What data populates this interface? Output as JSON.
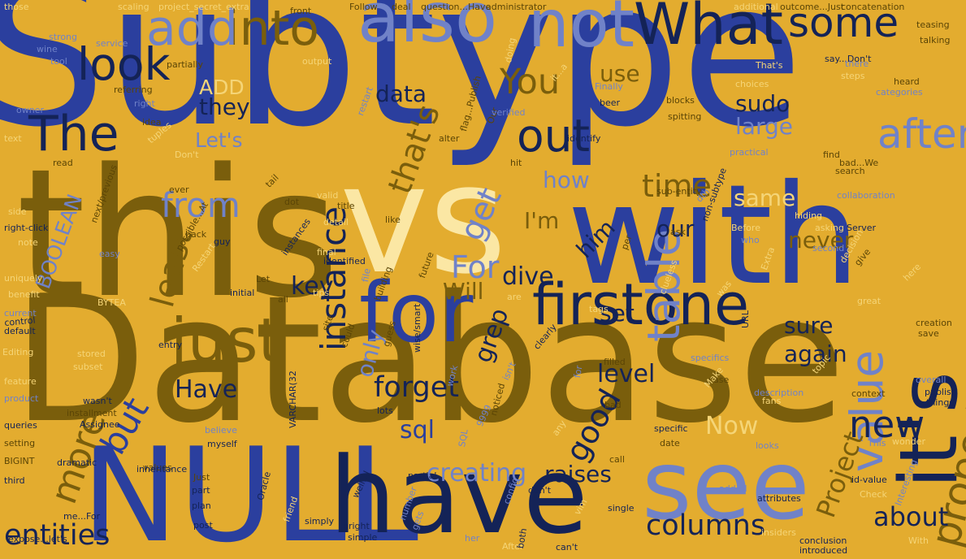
{
  "palette": {
    "background": "#e3ac2f",
    "royal_blue": "#2b3f9e",
    "navy": "#142357",
    "dark_olive": "#7a5e0c",
    "periwinkle": "#7082c8",
    "cream": "#fbe7a4",
    "pale_yellow": "#f5d577",
    "olive_brown": "#5b4506"
  },
  "words": [
    {
      "text": "Subtype",
      "color": "royal_blue"
    },
    {
      "text": "Database",
      "color": "dark_olive"
    },
    {
      "text": "this",
      "color": "dark_olive"
    },
    {
      "text": "vs",
      "color": "cream"
    },
    {
      "text": "with",
      "color": "royal_blue"
    },
    {
      "text": "NULL",
      "color": "royal_blue"
    },
    {
      "text": "have",
      "color": "navy"
    },
    {
      "text": "see",
      "color": "periwinkle"
    },
    {
      "text": "it's",
      "color": "navy"
    },
    {
      "text": "for",
      "color": "royal_blue"
    },
    {
      "text": "firstone",
      "color": "navy"
    },
    {
      "text": "just",
      "color": "dark_olive"
    },
    {
      "text": "also",
      "color": "periwinkle"
    },
    {
      "text": "not",
      "color": "periwinkle"
    },
    {
      "text": "What",
      "color": "navy"
    },
    {
      "text": "into",
      "color": "dark_olive"
    },
    {
      "text": "add",
      "color": "periwinkle"
    },
    {
      "text": "some",
      "color": "navy"
    },
    {
      "text": "look",
      "color": "navy"
    },
    {
      "text": "The",
      "color": "navy"
    },
    {
      "text": "out",
      "color": "navy"
    },
    {
      "text": "after",
      "color": "periwinkle"
    },
    {
      "text": "value",
      "color": "periwinkle"
    },
    {
      "text": "table",
      "color": "periwinkle"
    },
    {
      "text": "instance",
      "color": "navy"
    },
    {
      "text": "from",
      "color": "periwinkle"
    },
    {
      "text": "new",
      "color": "navy"
    },
    {
      "text": "property",
      "color": "dark_olive"
    },
    {
      "text": "columns",
      "color": "navy"
    },
    {
      "text": "more",
      "color": "dark_olive"
    },
    {
      "text": "entities",
      "color": "navy"
    },
    {
      "text": "but",
      "color": "royal_blue"
    },
    {
      "text": "get",
      "color": "periwinkle"
    },
    {
      "text": "You",
      "color": "dark_olive"
    },
    {
      "text": "time",
      "color": "dark_olive"
    },
    {
      "text": "that's",
      "color": "dark_olive"
    },
    {
      "text": "For",
      "color": "periwinkle"
    },
    {
      "text": "least",
      "color": "dark_olive"
    },
    {
      "text": "key",
      "color": "navy"
    },
    {
      "text": "forget",
      "color": "navy"
    },
    {
      "text": "good",
      "color": "navy"
    },
    {
      "text": "sql",
      "color": "royal_blue"
    },
    {
      "text": "Now",
      "color": "pale_yellow"
    },
    {
      "text": "creating",
      "color": "periwinkle"
    },
    {
      "text": "raises",
      "color": "navy"
    },
    {
      "text": "about",
      "color": "navy"
    },
    {
      "text": "Project",
      "color": "dark_olive"
    },
    {
      "text": "Have",
      "color": "navy"
    },
    {
      "text": "dive",
      "color": "navy"
    },
    {
      "text": "level",
      "color": "navy"
    },
    {
      "text": "grep",
      "color": "navy"
    },
    {
      "text": "same",
      "color": "pale_yellow"
    },
    {
      "text": "never",
      "color": "dark_olive"
    },
    {
      "text": "again",
      "color": "navy"
    },
    {
      "text": "sure",
      "color": "navy"
    },
    {
      "text": "set",
      "color": "navy"
    },
    {
      "text": "him",
      "color": "navy"
    },
    {
      "text": "our",
      "color": "navy"
    },
    {
      "text": "I'm",
      "color": "dark_olive"
    },
    {
      "text": "how",
      "color": "periwinkle"
    },
    {
      "text": "large",
      "color": "periwinkle"
    },
    {
      "text": "sudo",
      "color": "navy"
    },
    {
      "text": "use",
      "color": "dark_olive"
    },
    {
      "text": "data",
      "color": "navy"
    },
    {
      "text": "they",
      "color": "navy"
    },
    {
      "text": "ADD",
      "color": "pale_yellow"
    },
    {
      "text": "Let's",
      "color": "periwinkle"
    },
    {
      "text": "Will",
      "color": "dark_olive"
    },
    {
      "text": "only",
      "color": "periwinkle"
    },
    {
      "text": "BOOLEAN",
      "color": "periwinkle"
    },
    {
      "text": "those",
      "color": "pale_yellow"
    },
    {
      "text": "scaling",
      "color": "pale_yellow"
    },
    {
      "text": "project_secret_extra",
      "color": "pale_yellow"
    },
    {
      "text": "front",
      "color": "olive_brown"
    },
    {
      "text": "Follow",
      "color": "olive_brown"
    },
    {
      "text": "deal",
      "color": "olive_brown"
    },
    {
      "text": "question...Have",
      "color": "olive_brown"
    },
    {
      "text": "administrator",
      "color": "olive_brown"
    },
    {
      "text": "additional",
      "color": "pale_yellow"
    },
    {
      "text": "outcome...Just",
      "color": "olive_brown"
    },
    {
      "text": "concatenation",
      "color": "olive_brown"
    },
    {
      "text": "strong",
      "color": "periwinkle"
    },
    {
      "text": "service",
      "color": "periwinkle"
    },
    {
      "text": "wine",
      "color": "periwinkle"
    },
    {
      "text": "tool",
      "color": "periwinkle"
    },
    {
      "text": "partially",
      "color": "olive_brown"
    },
    {
      "text": "output",
      "color": "pale_yellow"
    },
    {
      "text": "doing",
      "color": "pale_yellow"
    },
    {
      "text": "teasing",
      "color": "olive_brown"
    },
    {
      "text": "talking",
      "color": "olive_brown"
    },
    {
      "text": "say...Don't",
      "color": "navy"
    },
    {
      "text": "there",
      "color": "periwinkle"
    },
    {
      "text": "steps",
      "color": "pale_yellow"
    },
    {
      "text": "heard",
      "color": "olive_brown"
    },
    {
      "text": "categories",
      "color": "periwinkle"
    },
    {
      "text": "referring",
      "color": "olive_brown"
    },
    {
      "text": "right",
      "color": "periwinkle"
    },
    {
      "text": "owner",
      "color": "periwinkle"
    },
    {
      "text": "idea",
      "color": "olive_brown"
    },
    {
      "text": "flag...Publish",
      "color": "olive_brown"
    },
    {
      "text": "it...a",
      "color": "pale_yellow"
    },
    {
      "text": "Finally",
      "color": "periwinkle"
    },
    {
      "text": "beer",
      "color": "navy"
    },
    {
      "text": "blocks",
      "color": "olive_brown"
    },
    {
      "text": "spitting",
      "color": "olive_brown"
    },
    {
      "text": "That's",
      "color": "pale_yellow"
    },
    {
      "text": "choices",
      "color": "pale_yellow"
    },
    {
      "text": "text",
      "color": "pale_yellow"
    },
    {
      "text": "tuples",
      "color": "pale_yellow"
    },
    {
      "text": "Don't",
      "color": "pale_yellow"
    },
    {
      "text": "read",
      "color": "olive_brown"
    },
    {
      "text": "Our",
      "color": "olive_brown"
    },
    {
      "text": "verified",
      "color": "periwinkle"
    },
    {
      "text": "alter",
      "color": "olive_brown"
    },
    {
      "text": "restart",
      "color": "periwinkle"
    },
    {
      "text": "hit",
      "color": "olive_brown"
    },
    {
      "text": "identify",
      "color": "navy"
    },
    {
      "text": "practical",
      "color": "periwinkle"
    },
    {
      "text": "bad...We",
      "color": "olive_brown"
    },
    {
      "text": "find",
      "color": "olive_brown"
    },
    {
      "text": "search",
      "color": "olive_brown"
    },
    {
      "text": "sub-entity",
      "color": "olive_brown"
    },
    {
      "text": "non-subtype",
      "color": "navy"
    },
    {
      "text": "dth",
      "color": "periwinkle"
    },
    {
      "text": "ever",
      "color": "olive_brown"
    },
    {
      "text": "side",
      "color": "pale_yellow"
    },
    {
      "text": "next/previous",
      "color": "olive_brown"
    },
    {
      "text": "tail",
      "color": "olive_brown"
    },
    {
      "text": "dot",
      "color": "olive_brown"
    },
    {
      "text": "valid",
      "color": "pale_yellow"
    },
    {
      "text": "title",
      "color": "olive_brown"
    },
    {
      "text": "detail",
      "color": "pale_yellow"
    },
    {
      "text": "like",
      "color": "olive_brown"
    },
    {
      "text": "hiding",
      "color": "pale_yellow"
    },
    {
      "text": "collaboration",
      "color": "periwinkle"
    },
    {
      "text": "asking",
      "color": "pale_yellow"
    },
    {
      "text": "Server",
      "color": "navy"
    },
    {
      "text": "right-click",
      "color": "navy"
    },
    {
      "text": "note",
      "color": "pale_yellow"
    },
    {
      "text": "easy",
      "color": "periwinkle"
    },
    {
      "text": "back",
      "color": "olive_brown"
    },
    {
      "text": "guy",
      "color": "navy"
    },
    {
      "text": "instances",
      "color": "navy"
    },
    {
      "text": "final",
      "color": "pale_yellow"
    },
    {
      "text": "identified",
      "color": "navy"
    },
    {
      "text": "file",
      "color": "periwinkle"
    },
    {
      "text": "future",
      "color": "olive_brown"
    },
    {
      "text": "per",
      "color": "olive_brown"
    },
    {
      "text": "ask",
      "color": "olive_brown"
    },
    {
      "text": "Before",
      "color": "pale_yellow"
    },
    {
      "text": "who",
      "color": "periwinkle"
    },
    {
      "text": "decision",
      "color": "pale_yellow"
    },
    {
      "text": "second",
      "color": "periwinkle"
    },
    {
      "text": "give",
      "color": "olive_brown"
    },
    {
      "text": "uniquely",
      "color": "pale_yellow"
    },
    {
      "text": "possible...At",
      "color": "olive_brown"
    },
    {
      "text": "Restart",
      "color": "pale_yellow"
    },
    {
      "text": "Let",
      "color": "olive_brown"
    },
    {
      "text": "initial",
      "color": "navy"
    },
    {
      "text": "tips",
      "color": "pale_yellow"
    },
    {
      "text": "all",
      "color": "olive_brown"
    },
    {
      "text": "are",
      "color": "pale_yellow"
    },
    {
      "text": "building",
      "color": "olive_brown"
    },
    {
      "text": "tags",
      "color": "pale_yellow"
    },
    {
      "text": "clueless",
      "color": "pale_yellow"
    },
    {
      "text": "was",
      "color": "pale_yellow"
    },
    {
      "text": "URL",
      "color": "navy"
    },
    {
      "text": "Extra",
      "color": "pale_yellow"
    },
    {
      "text": "here",
      "color": "pale_yellow"
    },
    {
      "text": "great",
      "color": "pale_yellow"
    },
    {
      "text": "benefit",
      "color": "pale_yellow"
    },
    {
      "text": "BYTEA",
      "color": "pale_yellow"
    },
    {
      "text": "current",
      "color": "periwinkle"
    },
    {
      "text": "control",
      "color": "navy"
    },
    {
      "text": "default",
      "color": "navy"
    },
    {
      "text": "Editing",
      "color": "pale_yellow"
    },
    {
      "text": "entry",
      "color": "navy"
    },
    {
      "text": "site",
      "color": "olive_brown"
    },
    {
      "text": "could",
      "color": "olive_brown"
    },
    {
      "text": "clearly",
      "color": "navy"
    },
    {
      "text": "for",
      "color": "periwinkle"
    },
    {
      "text": "creation",
      "color": "olive_brown"
    },
    {
      "text": "save",
      "color": "olive_brown"
    },
    {
      "text": "stored",
      "color": "pale_yellow"
    },
    {
      "text": "subset",
      "color": "pale_yellow"
    },
    {
      "text": "guess",
      "color": "olive_brown"
    },
    {
      "text": "wise/smart",
      "color": "navy"
    },
    {
      "text": "filled",
      "color": "olive_brown"
    },
    {
      "text": "specifics",
      "color": "periwinkle"
    },
    {
      "text": "topic",
      "color": "pale_yellow"
    },
    {
      "text": "overall",
      "color": "periwinkle"
    },
    {
      "text": "feature",
      "color": "pale_yellow"
    },
    {
      "text": "product",
      "color": "periwinkle"
    },
    {
      "text": "wasn't",
      "color": "navy"
    },
    {
      "text": "installment",
      "color": "olive_brown"
    },
    {
      "text": "Assignee",
      "color": "navy"
    },
    {
      "text": "VARCHAR(32",
      "color": "navy"
    },
    {
      "text": "lots",
      "color": "navy"
    },
    {
      "text": "work",
      "color": "periwinkle"
    },
    {
      "text": "isn't",
      "color": "periwinkle"
    },
    {
      "text": "case",
      "color": "olive_brown"
    },
    {
      "text": "Make",
      "color": "pale_yellow"
    },
    {
      "text": "bad",
      "color": "olive_brown"
    },
    {
      "text": "description",
      "color": "periwinkle"
    },
    {
      "text": "fans",
      "color": "pale_yellow"
    },
    {
      "text": "context",
      "color": "olive_brown"
    },
    {
      "text": "publish",
      "color": "navy"
    },
    {
      "text": "things",
      "color": "navy"
    },
    {
      "text": "queries",
      "color": "navy"
    },
    {
      "text": "setting",
      "color": "olive_brown"
    },
    {
      "text": "believe",
      "color": "periwinkle"
    },
    {
      "text": "myself",
      "color": "navy"
    },
    {
      "text": "SQL",
      "color": "periwinkle"
    },
    {
      "text": "9999",
      "color": "periwinkle"
    },
    {
      "text": "noticed",
      "color": "olive_brown"
    },
    {
      "text": "any",
      "color": "pale_yellow"
    },
    {
      "text": "date",
      "color": "olive_brown"
    },
    {
      "text": "specific",
      "color": "navy"
    },
    {
      "text": "looks",
      "color": "periwinkle"
    },
    {
      "text": "This",
      "color": "periwinkle"
    },
    {
      "text": "wonder",
      "color": "pale_yellow"
    },
    {
      "text": "BIGINT",
      "color": "olive_brown"
    },
    {
      "text": "dramatic",
      "color": "navy"
    },
    {
      "text": "third",
      "color": "navy"
    },
    {
      "text": "values",
      "color": "olive_brown"
    },
    {
      "text": "inheritance",
      "color": "navy"
    },
    {
      "text": "call",
      "color": "olive_brown"
    },
    {
      "text": "Just",
      "color": "olive_brown"
    },
    {
      "text": "part",
      "color": "navy"
    },
    {
      "text": "plan",
      "color": "navy"
    },
    {
      "text": "post",
      "color": "navy"
    },
    {
      "text": "me...For",
      "color": "navy"
    },
    {
      "text": "expose...let's",
      "color": "navy"
    },
    {
      "text": "Oracle",
      "color": "navy"
    },
    {
      "text": "simply",
      "color": "navy"
    },
    {
      "text": "friend",
      "color": "pale_yellow"
    },
    {
      "text": "well...I",
      "color": "navy"
    },
    {
      "text": "bright",
      "color": "navy"
    },
    {
      "text": "simple",
      "color": "navy"
    },
    {
      "text": "partial",
      "color": "navy"
    },
    {
      "text": "number",
      "color": "periwinkle"
    },
    {
      "text": "gets",
      "color": "periwinkle"
    },
    {
      "text": "her",
      "color": "periwinkle"
    },
    {
      "text": "config",
      "color": "periwinkle"
    },
    {
      "text": "don't",
      "color": "navy"
    },
    {
      "text": "After",
      "color": "pale_yellow"
    },
    {
      "text": "both",
      "color": "navy"
    },
    {
      "text": "can't",
      "color": "navy"
    },
    {
      "text": "vim",
      "color": "pale_yellow"
    },
    {
      "text": "added",
      "color": "periwinkle"
    },
    {
      "text": "single",
      "color": "navy"
    },
    {
      "text": "attributes",
      "color": "navy"
    },
    {
      "text": "insiders",
      "color": "pale_yellow"
    },
    {
      "text": "conclusion",
      "color": "navy"
    },
    {
      "text": "introduced",
      "color": "navy"
    },
    {
      "text": "id-value",
      "color": "navy"
    },
    {
      "text": "Check",
      "color": "pale_yellow"
    },
    {
      "text": "Interesting",
      "color": "periwinkle"
    },
    {
      "text": "With",
      "color": "pale_yellow"
    }
  ]
}
